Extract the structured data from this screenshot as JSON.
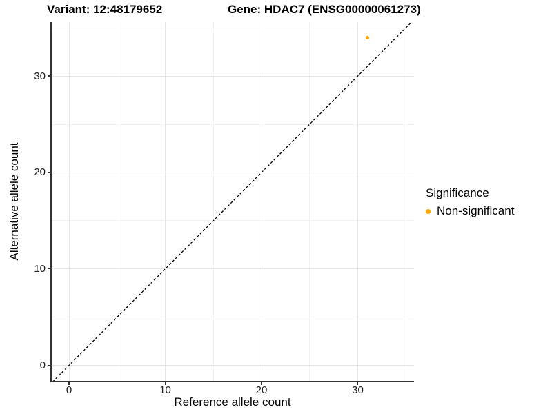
{
  "titles": {
    "variant": "Variant: 12:48179652",
    "gene": "Gene: HDAC7 (ENSG00000061273)"
  },
  "chart_data": {
    "type": "scatter",
    "title": "Variant: 12:48179652 | Gene: HDAC7 (ENSG00000061273)",
    "xlabel": "Reference allele count",
    "ylabel": "Alternative allele count",
    "xlim": [
      -1.8,
      35.8
    ],
    "ylim": [
      -1.7,
      35.7
    ],
    "x_major_ticks": [
      0,
      10,
      20,
      30
    ],
    "y_major_ticks": [
      0,
      10,
      20,
      30
    ],
    "x_minor_gridlines": [
      5,
      15,
      25,
      35
    ],
    "y_minor_gridlines": [
      5,
      15,
      25,
      35
    ],
    "grid": "major+minor",
    "legend": {
      "title": "Significance",
      "position": "right",
      "entries": [
        {
          "label": "Non-significant",
          "color": "#FFA500"
        }
      ]
    },
    "series": [
      {
        "name": "Non-significant",
        "color": "#FFA500",
        "points": [
          {
            "x": 31,
            "y": 34
          }
        ]
      }
    ],
    "reference_line": {
      "equation": "y = x",
      "style": "dashed",
      "color": "#000000",
      "from": [
        -1.7,
        -1.7
      ],
      "to": [
        35.7,
        35.7
      ]
    }
  },
  "colors": {
    "point_orange": "#FFA500",
    "axis_line": "#333333",
    "grid_major": "#e6e6e6",
    "grid_minor": "#f2f2f2"
  }
}
